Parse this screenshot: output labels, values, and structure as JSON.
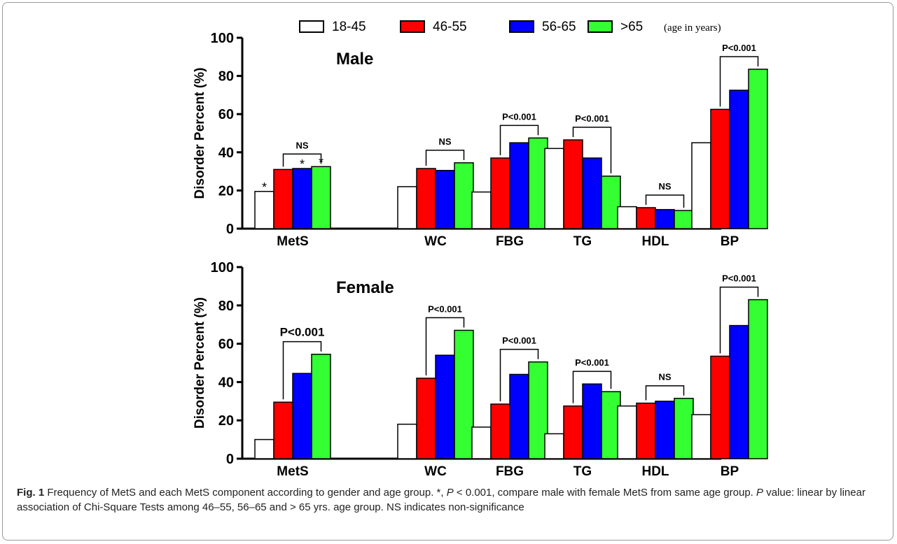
{
  "legend": {
    "items": [
      {
        "label": "18-45",
        "color": "#ffffff"
      },
      {
        "label": "46-55",
        "color": "#ff0000"
      },
      {
        "label": "56-65",
        "color": "#0000ff"
      },
      {
        "label": ">65",
        "color": "#33ff33"
      }
    ],
    "suffix": "(age in years)"
  },
  "chart_data": [
    {
      "type": "bar",
      "title": "Male",
      "ylabel": "Disorder Percent (%)",
      "ylim": [
        0,
        100
      ],
      "yticks": [
        0,
        20,
        40,
        60,
        80,
        100
      ],
      "categories": [
        "MetS",
        "WC",
        "FBG",
        "TG",
        "HDL",
        "BP"
      ],
      "series": [
        {
          "name": "18-45",
          "values": [
            19.5,
            22,
            19.2,
            42,
            11.5,
            45
          ]
        },
        {
          "name": "46-55",
          "values": [
            31,
            31.5,
            37,
            46.5,
            11,
            62.5
          ]
        },
        {
          "name": "56-65",
          "values": [
            31.5,
            30.5,
            45,
            37,
            10,
            72.5
          ]
        },
        {
          "name": ">65",
          "values": [
            32.5,
            34.5,
            47.5,
            27.5,
            9.5,
            83.5
          ]
        }
      ],
      "annotations": [
        {
          "category": "MetS",
          "text": "NS"
        },
        {
          "category": "WC",
          "text": "NS"
        },
        {
          "category": "FBG",
          "text": "P<0.001"
        },
        {
          "category": "TG",
          "text": "P<0.001"
        },
        {
          "category": "HDL",
          "text": "NS"
        },
        {
          "category": "BP",
          "text": "P<0.001"
        }
      ],
      "asterisks": [
        "18-45",
        "56-65",
        ">65"
      ]
    },
    {
      "type": "bar",
      "title": "Female",
      "ylabel": "Disorder Percent (%)",
      "ylim": [
        0,
        100
      ],
      "yticks": [
        0,
        20,
        40,
        60,
        80,
        100
      ],
      "categories": [
        "MetS",
        "WC",
        "FBG",
        "TG",
        "HDL",
        "BP"
      ],
      "series": [
        {
          "name": "18-45",
          "values": [
            10,
            18,
            16.5,
            13,
            27.5,
            23
          ]
        },
        {
          "name": "46-55",
          "values": [
            29.5,
            42,
            28.5,
            27.5,
            29,
            53.5
          ]
        },
        {
          "name": "56-65",
          "values": [
            44.5,
            54,
            44,
            39,
            30,
            69.5
          ]
        },
        {
          "name": ">65",
          "values": [
            54.5,
            67,
            50.5,
            35,
            31.5,
            83
          ]
        }
      ],
      "annotations": [
        {
          "category": "MetS",
          "text": "P<0.001"
        },
        {
          "category": "WC",
          "text": "P<0.001"
        },
        {
          "category": "FBG",
          "text": "P<0.001"
        },
        {
          "category": "TG",
          "text": "P<0.001"
        },
        {
          "category": "HDL",
          "text": "NS"
        },
        {
          "category": "BP",
          "text": "P<0.001"
        }
      ],
      "asterisks": []
    }
  ],
  "caption": {
    "label": "Fig. 1",
    "text_1": " Frequency of MetS and each MetS component according to gender and age group. *, ",
    "p_italic_1": "P",
    "text_2": " < 0.001, compare male with female MetS from same age group. ",
    "p_italic_2": "P",
    "text_3": " value: linear by linear association of Chi-Square Tests among 46–55, 56–65 and > 65 yrs. age group. NS indicates non-significance"
  }
}
